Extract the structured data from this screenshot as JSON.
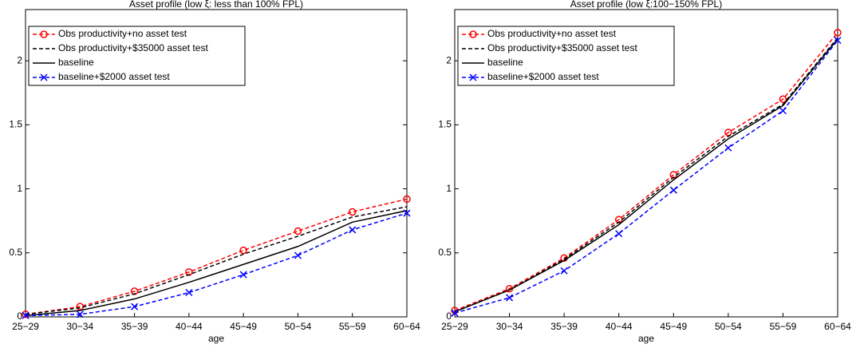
{
  "chart_data": [
    {
      "type": "line",
      "title": "Asset profile (low ξ: less than 100% FPL)",
      "x_label": "age",
      "categories": [
        "25−29",
        "30−34",
        "35−39",
        "40−44",
        "45−49",
        "50−54",
        "55−59",
        "60−64"
      ],
      "ylim": [
        0,
        2.4
      ],
      "yticks": [
        0,
        0.5,
        1,
        1.5,
        2
      ],
      "legend": "upper-left",
      "series": [
        {
          "name": "Obs productivity+no asset test",
          "color": "#ff0000",
          "dash": true,
          "marker": "o",
          "values": [
            0.02,
            0.08,
            0.2,
            0.35,
            0.52,
            0.67,
            0.82,
            0.92
          ]
        },
        {
          "name": "Obs productivity+$35000 asset test",
          "color": "#000000",
          "dash": true,
          "marker": null,
          "values": [
            0.02,
            0.07,
            0.18,
            0.33,
            0.49,
            0.63,
            0.78,
            0.86
          ]
        },
        {
          "name": "baseline",
          "color": "#000000",
          "dash": false,
          "marker": null,
          "values": [
            0.01,
            0.05,
            0.14,
            0.27,
            0.41,
            0.55,
            0.74,
            0.83
          ]
        },
        {
          "name": "baseline+$2000 asset test",
          "color": "#0000ff",
          "dash": true,
          "marker": "x",
          "values": [
            0.01,
            0.02,
            0.08,
            0.19,
            0.33,
            0.48,
            0.68,
            0.81
          ]
        }
      ]
    },
    {
      "type": "line",
      "title": "Asset profile (low ξ:100−150% FPL)",
      "x_label": "age",
      "categories": [
        "25−29",
        "30−34",
        "35−39",
        "40−44",
        "45−49",
        "50−54",
        "55−59",
        "60−64"
      ],
      "ylim": [
        0,
        2.4
      ],
      "yticks": [
        0,
        0.5,
        1,
        1.5,
        2
      ],
      "legend": "upper-left",
      "series": [
        {
          "name": "Obs productivity+no asset test",
          "color": "#ff0000",
          "dash": true,
          "marker": "o",
          "values": [
            0.05,
            0.22,
            0.46,
            0.76,
            1.11,
            1.44,
            1.7,
            2.22
          ]
        },
        {
          "name": "Obs productivity+$35000 asset test",
          "color": "#000000",
          "dash": true,
          "marker": null,
          "values": [
            0.04,
            0.21,
            0.45,
            0.74,
            1.09,
            1.41,
            1.66,
            2.18
          ]
        },
        {
          "name": "baseline",
          "color": "#000000",
          "dash": false,
          "marker": null,
          "values": [
            0.04,
            0.21,
            0.44,
            0.72,
            1.07,
            1.39,
            1.65,
            2.17
          ]
        },
        {
          "name": "baseline+$2000 asset test",
          "color": "#0000ff",
          "dash": true,
          "marker": "x",
          "values": [
            0.03,
            0.15,
            0.36,
            0.65,
            0.99,
            1.32,
            1.61,
            2.16
          ]
        }
      ]
    }
  ]
}
